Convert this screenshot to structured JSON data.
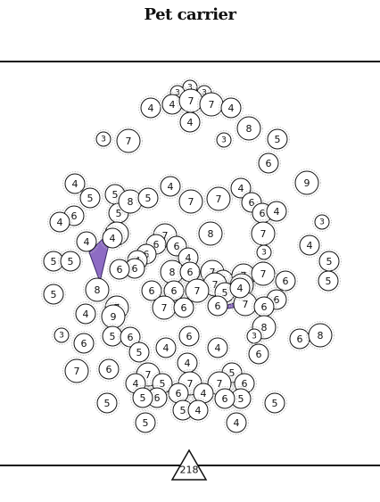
{
  "header": {
    "title": "Pet carrier"
  },
  "footer": {
    "page_number": "218"
  },
  "colors": {
    "piece_fill": "#8e6cc4",
    "piece_stroke": "#3a2a66",
    "line": "#111111"
  },
  "pieces": [
    3,
    3,
    3,
    3,
    4,
    4,
    7,
    7,
    4,
    4,
    7,
    3,
    8,
    5,
    6,
    4,
    5,
    5,
    5,
    8,
    5,
    4,
    7,
    7,
    4,
    6,
    6,
    4,
    9,
    3,
    6,
    4,
    7,
    8,
    7,
    7,
    3,
    4,
    5,
    4,
    4,
    6,
    6,
    6,
    4,
    5,
    5,
    4,
    6,
    8,
    6,
    7,
    6,
    7,
    7,
    7,
    7,
    6,
    5,
    5,
    8,
    6,
    6,
    6,
    7,
    5,
    6,
    7,
    6,
    7,
    4,
    7,
    6,
    4,
    9,
    6,
    3,
    6,
    5,
    6,
    8,
    6,
    3,
    6,
    8,
    5,
    4,
    4,
    6,
    6,
    4,
    7,
    7,
    4,
    5,
    7,
    5,
    7,
    6,
    6,
    6,
    4,
    5,
    5,
    6,
    5,
    5,
    4,
    5,
    5,
    4
  ]
}
